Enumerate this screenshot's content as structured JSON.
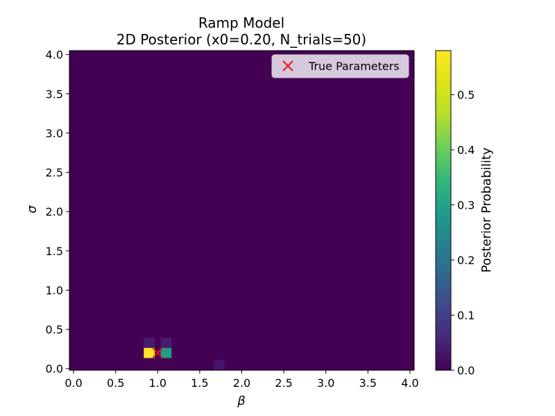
{
  "chart_data": {
    "type": "heatmap",
    "title_line1": "Ramp Model",
    "title_line2": "2D Posterior (x0=0.20, N_trials=50)",
    "xlabel": "β",
    "ylabel": "σ",
    "xlim": [
      -0.05,
      4.05
    ],
    "ylim": [
      -0.02,
      4.05
    ],
    "x_ticks": [
      0.0,
      0.5,
      1.0,
      1.5,
      2.0,
      2.5,
      3.0,
      3.5,
      4.0
    ],
    "x_tick_labels": [
      "0.0",
      "0.5",
      "1.0",
      "1.5",
      "2.0",
      "2.5",
      "3.0",
      "3.5",
      "4.0"
    ],
    "y_ticks": [
      0.0,
      0.5,
      1.0,
      1.5,
      2.0,
      2.5,
      3.0,
      3.5,
      4.0
    ],
    "y_tick_labels": [
      "0.0",
      "0.5",
      "1.0",
      "1.5",
      "2.0",
      "2.5",
      "3.0",
      "3.5",
      "4.0"
    ],
    "colormap": "viridis",
    "colorbar": {
      "label": "Posterior Probability",
      "vmin": 0.0,
      "vmax": 0.58,
      "ticks": [
        0.0,
        0.1,
        0.2,
        0.3,
        0.4,
        0.5
      ],
      "tick_labels": [
        "0.0",
        "0.1",
        "0.2",
        "0.3",
        "0.4",
        "0.5"
      ]
    },
    "background_value": 0.0,
    "cells": [
      {
        "beta": 0.9,
        "sigma": 0.2,
        "value": 0.58
      },
      {
        "beta": 1.1,
        "sigma": 0.2,
        "value": 0.29
      },
      {
        "beta": 0.9,
        "sigma": 0.33,
        "value": 0.04
      },
      {
        "beta": 1.1,
        "sigma": 0.33,
        "value": 0.04
      },
      {
        "beta": 1.73,
        "sigma": 0.05,
        "value": 0.03
      }
    ],
    "cell_width": 0.13,
    "cell_height": 0.13,
    "true_parameters": {
      "beta": 1.0,
      "sigma": 0.2,
      "color": "#e8141b"
    },
    "legend": {
      "label": "True Parameters",
      "location": "upper-right"
    }
  }
}
